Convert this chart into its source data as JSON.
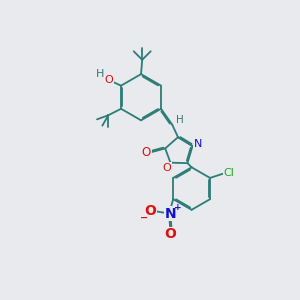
{
  "bg_color": "#e8eaed",
  "bond_color": "#2d7c78",
  "bond_lw": 1.3,
  "dbo": 0.055,
  "atom_colors": {
    "O": "#dd1111",
    "N": "#1111cc",
    "Cl": "#22aa22",
    "H": "#2d7c78",
    "C": "#2d7c78"
  },
  "fs": 7.5,
  "figsize": [
    3.0,
    3.0
  ],
  "dpi": 100
}
